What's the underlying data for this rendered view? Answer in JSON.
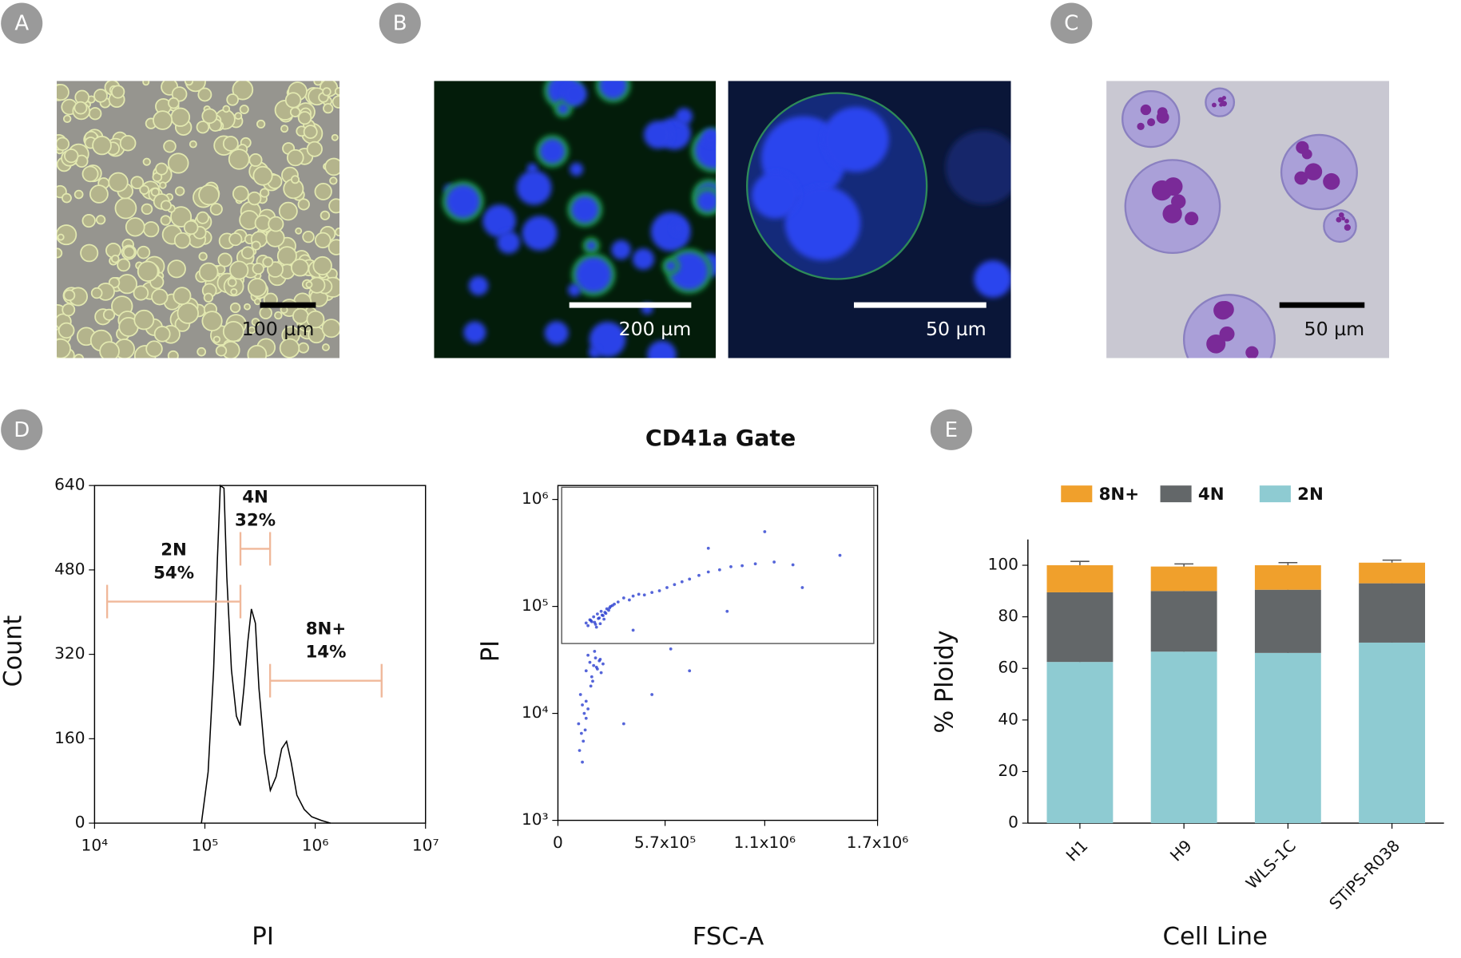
{
  "panel_labels": [
    "A",
    "B",
    "C",
    "D",
    "E"
  ],
  "scale_bars": [
    "100 µm",
    "200 µm",
    "50 µm",
    "50 µm"
  ],
  "chart_data": [
    {
      "type": "line",
      "xlabel": "PI",
      "ylabel": "Count",
      "log_x": true,
      "xlim": [
        10000,
        10000000
      ],
      "xticks": [
        {
          "value": 10000,
          "label": "10⁴"
        },
        {
          "value": 100000,
          "label": "10⁵"
        },
        {
          "value": 1000000,
          "label": "10⁶"
        },
        {
          "value": 10000000,
          "label": "10⁷"
        }
      ],
      "ylim": [
        0,
        640
      ],
      "yticks": [
        0,
        160,
        320,
        480,
        640
      ],
      "color": "#000000",
      "x": [
        93000,
        107000,
        120000,
        130000,
        138000,
        149000,
        158000,
        174000,
        193000,
        209000,
        226000,
        245000,
        264000,
        287000,
        309000,
        348000,
        392000,
        442000,
        497000,
        550000,
        606000,
        682000,
        795000,
        930000,
        1140000,
        1380000
      ],
      "values": [
        0,
        97,
        291,
        503,
        640,
        635,
        467,
        291,
        203,
        185,
        256,
        344,
        406,
        379,
        256,
        132,
        62,
        88,
        141,
        155,
        115,
        53,
        26,
        12,
        5,
        0
      ],
      "gates": {
        "names": [
          "2N",
          "4N",
          "8N+"
        ],
        "values": [
          54,
          32,
          14
        ],
        "value_labels": [
          "54%",
          "32%",
          "14%"
        ],
        "ranges": [
          [
            13000,
            210000
          ],
          [
            210000,
            390000
          ],
          [
            390000,
            4000000
          ]
        ],
        "levels": [
          420,
          520,
          270
        ],
        "color": "#f0b89a"
      }
    },
    {
      "type": "scatter",
      "title": "CD41a Gate",
      "xlabel": "FSC-A",
      "ylabel": "PI",
      "log_y": true,
      "xlim": [
        0,
        1700000
      ],
      "xticks": [
        0,
        {
          "value": 570000,
          "label": "5.7x10⁵"
        },
        {
          "value": 1100000,
          "label": "1.1x10⁶"
        },
        {
          "value": 1700000,
          "label": "1.7x10⁶"
        }
      ],
      "ylim": [
        1000,
        1350000
      ],
      "yticks": [
        {
          "value": 1000,
          "label": "10³"
        },
        {
          "value": 10000,
          "label": "10⁴"
        },
        {
          "value": 100000,
          "label": "10⁵"
        },
        {
          "value": 1000000,
          "label": "10⁶"
        }
      ],
      "color": "#2a3fd0",
      "x": [
        150000,
        170000,
        180000,
        190000,
        200000,
        210000,
        220000,
        230000,
        240000,
        250000,
        260000,
        270000,
        280000,
        300000,
        160000,
        175000,
        195000,
        215000,
        235000,
        255000,
        275000,
        290000,
        205000,
        225000,
        245000,
        320000,
        350000,
        380000,
        400000,
        430000,
        460000,
        500000,
        540000,
        580000,
        620000,
        660000,
        700000,
        750000,
        800000,
        860000,
        920000,
        980000,
        1050000,
        1150000,
        1250000,
        150000,
        170000,
        180000,
        190000,
        200000,
        210000,
        220000,
        230000,
        240000,
        160000,
        185000,
        205000,
        225000,
        195000,
        175000,
        120000,
        130000,
        140000,
        150000,
        110000,
        125000,
        135000,
        145000,
        160000,
        115000,
        130000,
        150000,
        400000,
        600000,
        900000,
        1300000,
        1500000,
        700000,
        500000,
        1100000,
        350000,
        800000
      ],
      "values": [
        70000,
        75000,
        72000,
        80000,
        68000,
        85000,
        78000,
        90000,
        82000,
        88000,
        95000,
        92000,
        100000,
        105000,
        66000,
        74000,
        71000,
        77000,
        83000,
        86000,
        97000,
        102000,
        64000,
        69000,
        76000,
        110000,
        120000,
        115000,
        125000,
        130000,
        128000,
        135000,
        140000,
        150000,
        160000,
        170000,
        180000,
        195000,
        210000,
        220000,
        235000,
        240000,
        250000,
        260000,
        245000,
        25000,
        30000,
        22000,
        28000,
        33000,
        26000,
        31000,
        24000,
        29000,
        35000,
        20000,
        27000,
        32000,
        38000,
        18000,
        15000,
        12000,
        10000,
        9000,
        8000,
        6500,
        5500,
        7000,
        11000,
        4500,
        3500,
        13000,
        60000,
        40000,
        90000,
        150000,
        300000,
        25000,
        15000,
        500000,
        8000,
        350000
      ],
      "gate": {
        "xrange": [
          20000,
          1680000
        ],
        "yrange": [
          45000,
          1300000
        ]
      }
    },
    {
      "type": "stacked_bar",
      "xlabel": "Cell Line",
      "ylabel": "% Ploidy",
      "categories": [
        "H1",
        "H9",
        "WLS-1C",
        "STiPS-R038"
      ],
      "ylim": [
        0,
        110
      ],
      "yticks": [
        0,
        20,
        40,
        60,
        80,
        100
      ],
      "series": [
        {
          "name": "2N",
          "color": "#8ecbd2",
          "values": [
            62.5,
            66.5,
            66,
            70
          ],
          "errors": [
            3,
            1,
            1,
            2
          ]
        },
        {
          "name": "4N",
          "color": "#636769",
          "values": [
            27,
            23.5,
            24.5,
            23
          ],
          "errors": [
            2,
            1,
            1,
            1.5
          ]
        },
        {
          "name": "8N+",
          "color": "#f0a02c",
          "values": [
            10.5,
            9.5,
            9.5,
            8
          ],
          "errors": [
            1.5,
            1,
            1,
            1
          ]
        }
      ]
    }
  ]
}
